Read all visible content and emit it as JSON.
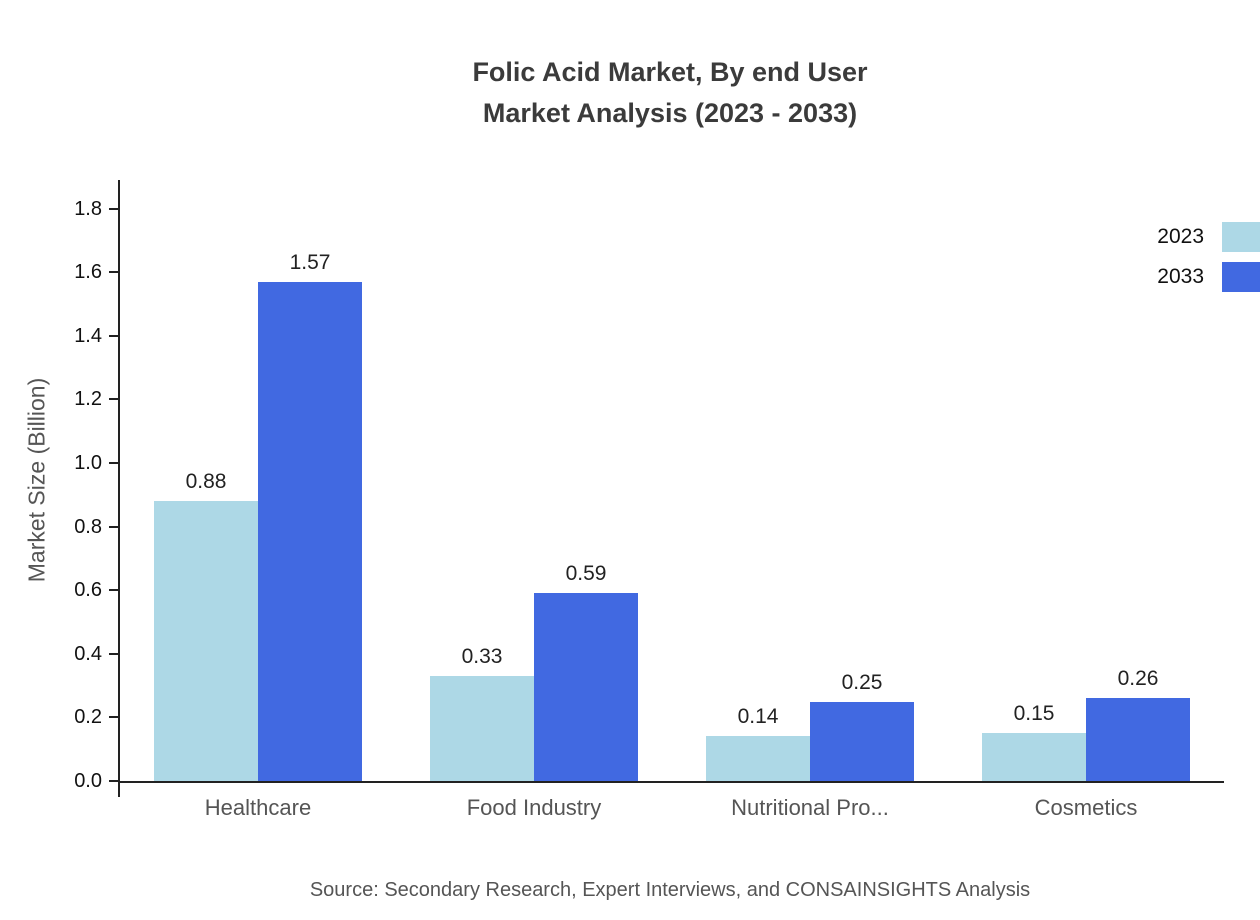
{
  "title": {
    "line1": "Folic Acid Market, By end User",
    "line2": "Market Analysis (2023 - 2033)"
  },
  "chart_data": {
    "type": "bar",
    "categories": [
      "Healthcare",
      "Food Industry",
      "Nutritional Pro...",
      "Cosmetics"
    ],
    "series": [
      {
        "name": "2023",
        "color": "#ADD8E6",
        "values": [
          0.88,
          0.33,
          0.14,
          0.15
        ]
      },
      {
        "name": "2033",
        "color": "#4169E1",
        "values": [
          1.57,
          0.59,
          0.25,
          0.26
        ]
      }
    ],
    "title": "Folic Acid Market, By end User Market Analysis (2023 - 2033)",
    "xlabel": "",
    "ylabel": "Market Size (Billion)",
    "ylim": [
      0,
      1.89
    ],
    "yticks": [
      0.0,
      0.2,
      0.4,
      0.6,
      0.8,
      1.0,
      1.2,
      1.4,
      1.6,
      1.8
    ],
    "grid": false,
    "legend_position": "top-right"
  },
  "source": "Source: Secondary Research, Expert Interviews, and CONSAINSIGHTS Analysis"
}
